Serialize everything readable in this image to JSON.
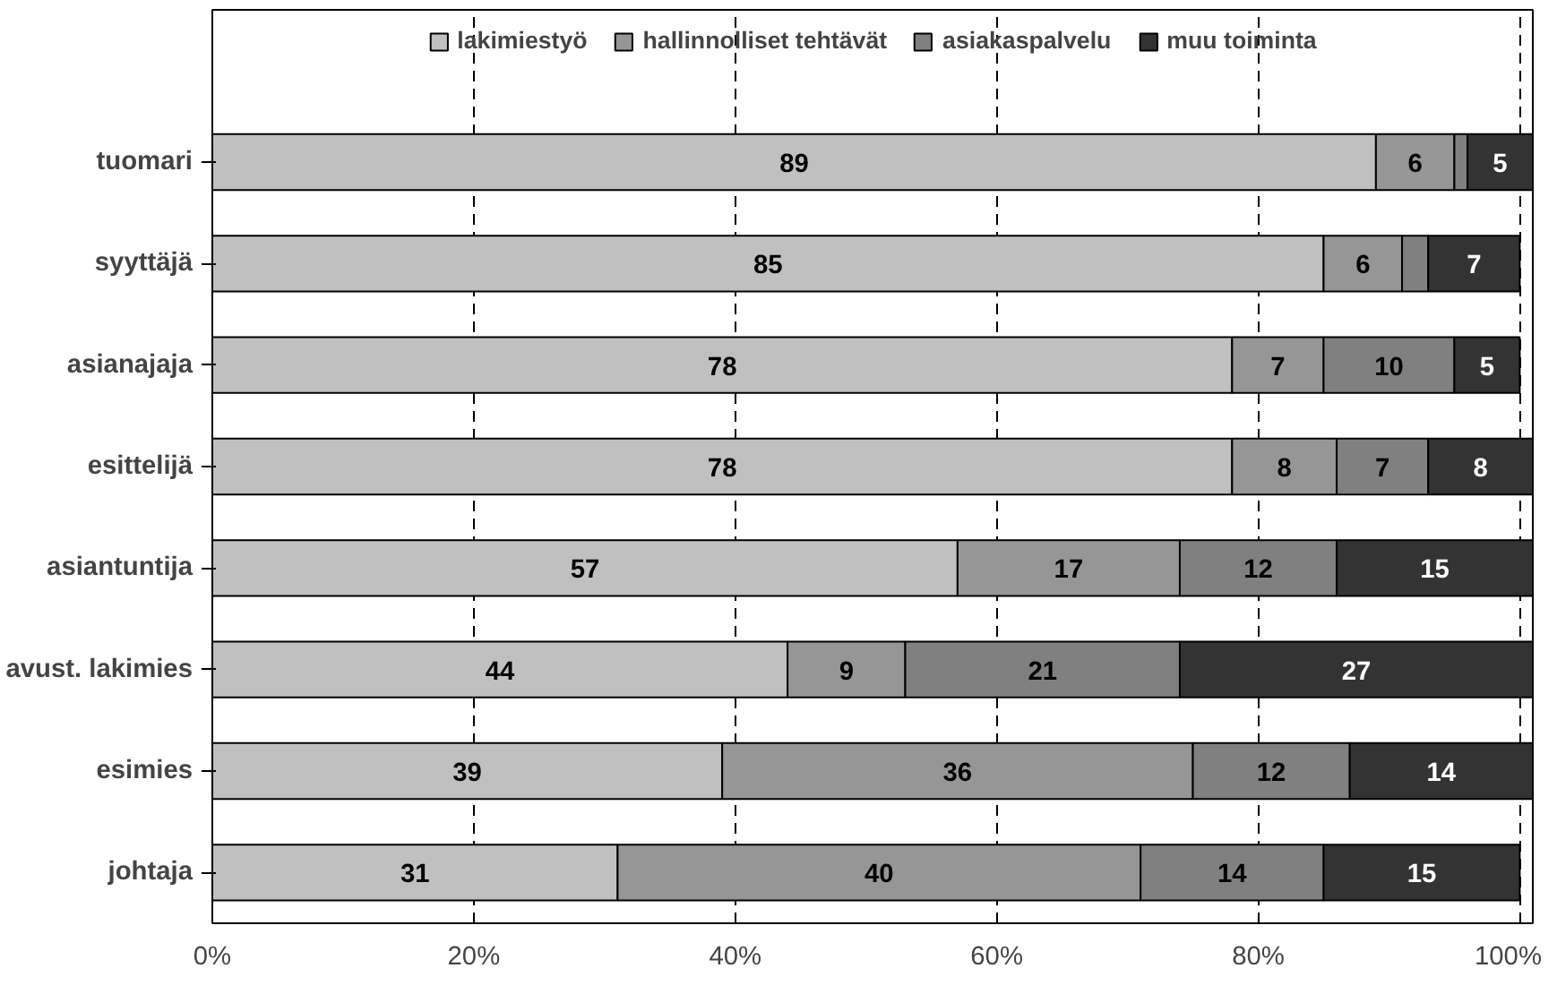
{
  "chart_data": {
    "type": "bar",
    "orientation": "horizontal",
    "stacked": true,
    "categories": [
      "tuomari",
      "syyttäjä",
      "asianajaja",
      "esittelijä",
      "asiantuntija",
      "avust. lakimies",
      "esimies",
      "johtaja"
    ],
    "series": [
      {
        "name": "lakimiestyö",
        "color": "#c0c0c0",
        "values": [
          89,
          85,
          78,
          78,
          57,
          44,
          39,
          31
        ],
        "value_labels": [
          "89",
          "85",
          "78",
          "78",
          "57",
          "44",
          "39",
          "31"
        ]
      },
      {
        "name": "hallinnolliset tehtävät",
        "color": "#969696",
        "values": [
          6,
          6,
          7,
          8,
          17,
          9,
          36,
          40
        ],
        "value_labels": [
          "6",
          "6",
          "7",
          "8",
          "17",
          "9",
          "36",
          "40"
        ]
      },
      {
        "name": "asiakaspalvelu",
        "color": "#808080",
        "values": [
          1,
          2,
          10,
          7,
          12,
          21,
          12,
          14
        ],
        "value_labels": [
          null,
          null,
          "10",
          "7",
          "12",
          "21",
          "12",
          "14"
        ]
      },
      {
        "name": "muu toiminta",
        "color": "#333333",
        "values": [
          5,
          7,
          5,
          8,
          15,
          27,
          14,
          15
        ],
        "value_labels": [
          "5",
          "7",
          "5",
          "8",
          "15",
          "27",
          "14",
          "15"
        ]
      }
    ],
    "xlim": [
      0,
      101
    ],
    "xticks": [
      {
        "value": 0,
        "label": "0%"
      },
      {
        "value": 20,
        "label": "20%"
      },
      {
        "value": 40,
        "label": "40%"
      },
      {
        "value": 60,
        "label": "60%"
      },
      {
        "value": 80,
        "label": "80%"
      },
      {
        "value": 100,
        "label": "100%"
      }
    ],
    "grid": "x",
    "legend": "top"
  }
}
